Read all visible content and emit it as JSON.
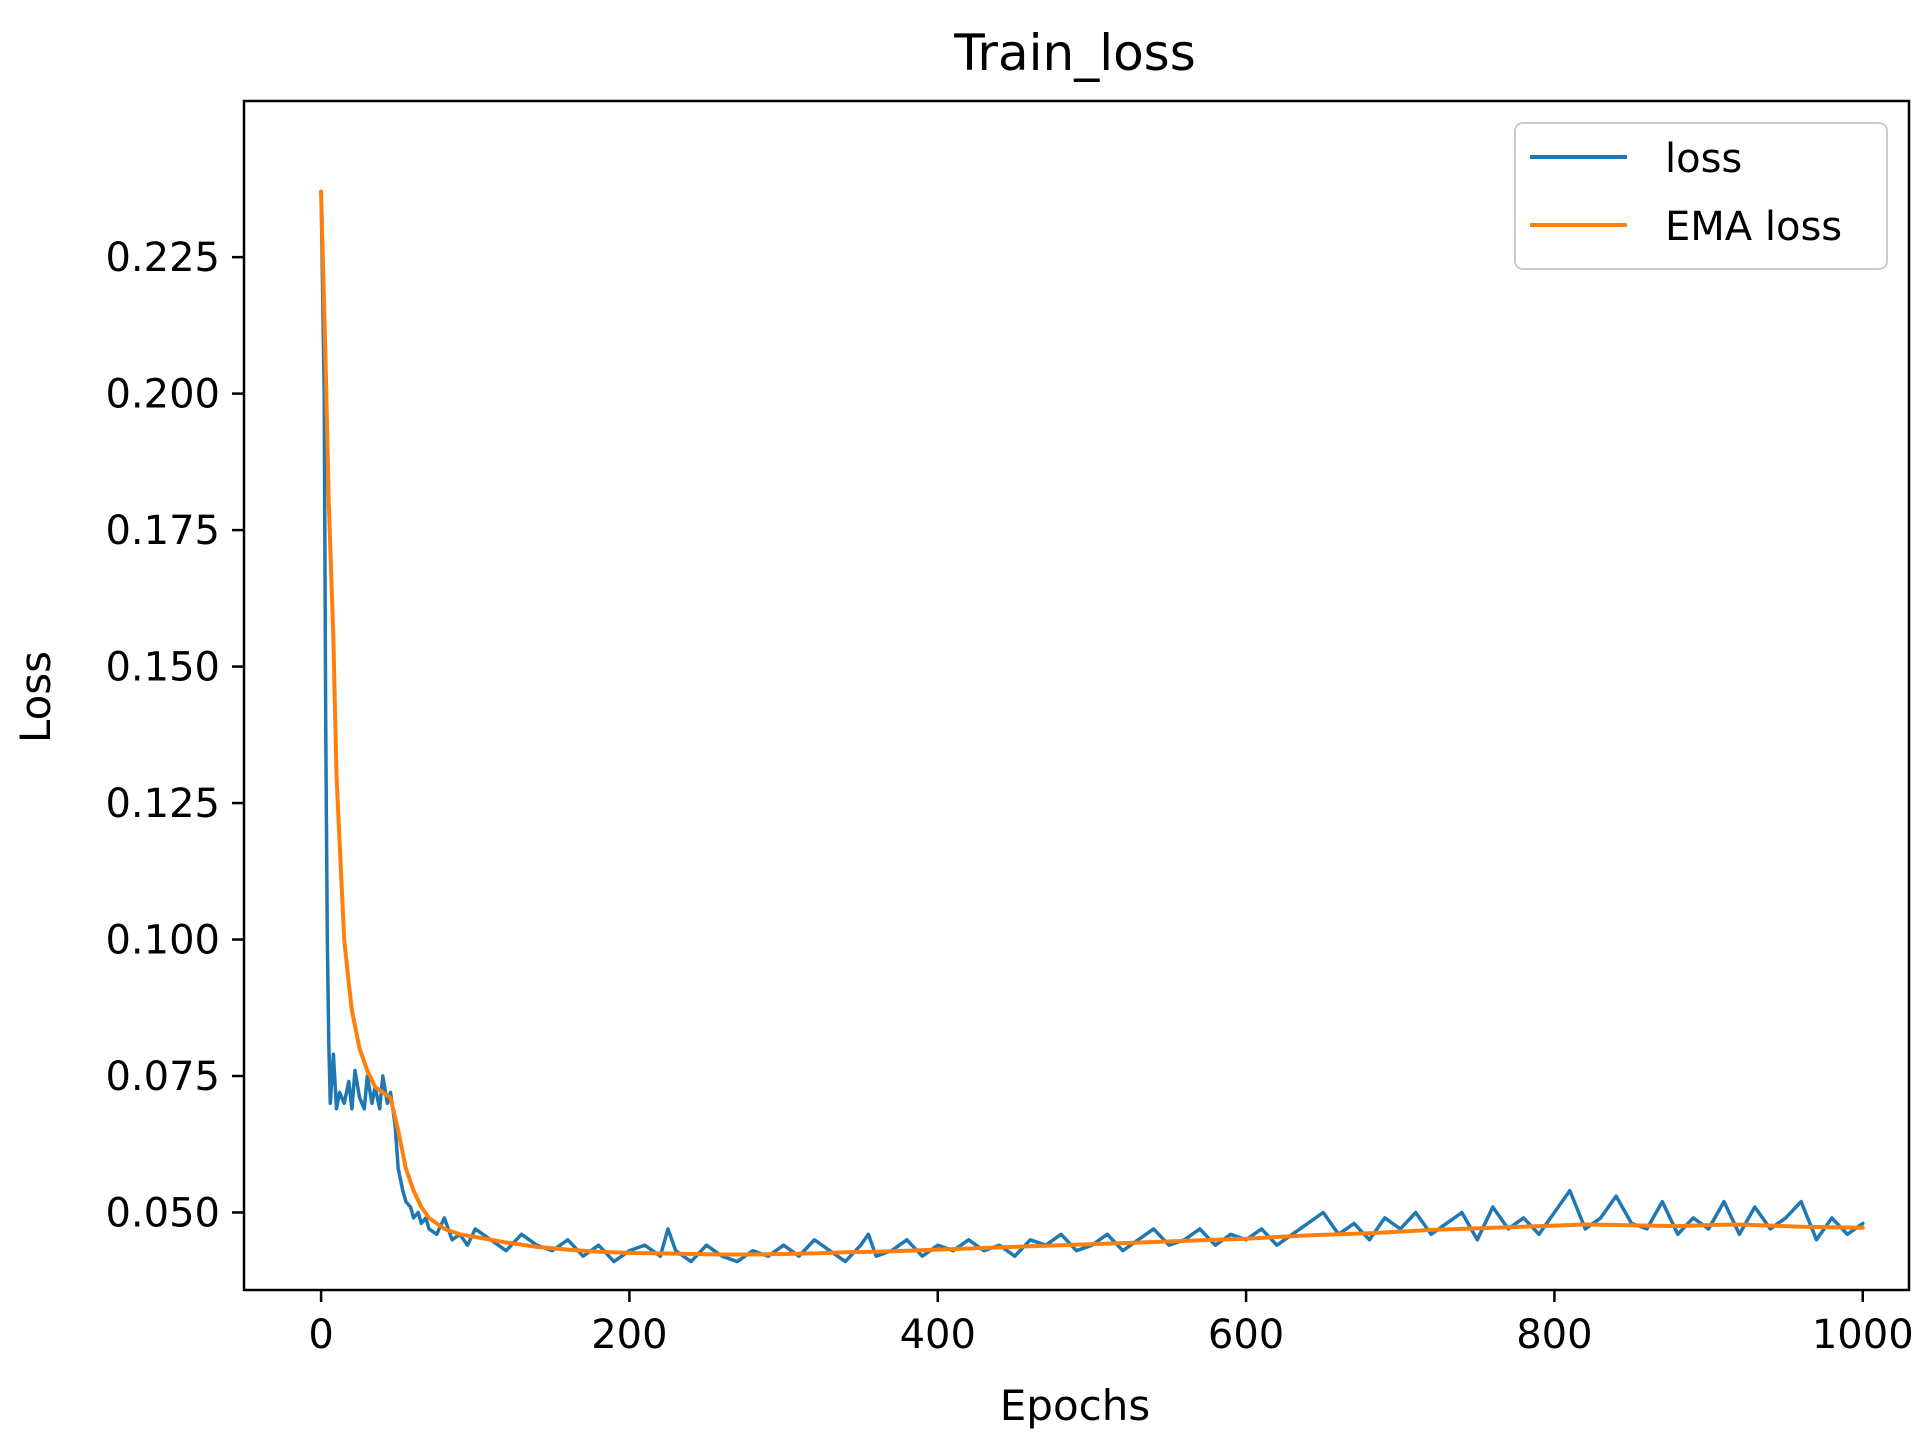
{
  "chart_data": {
    "type": "line",
    "title": "Train_loss",
    "xlabel": "Epochs",
    "ylabel": "Loss",
    "xlim": [
      -50,
      1030
    ],
    "ylim": [
      0.0358,
      0.2536
    ],
    "xticks": [
      0,
      200,
      400,
      600,
      800,
      1000
    ],
    "xtick_labels": [
      "0",
      "200",
      "400",
      "600",
      "800",
      "1000"
    ],
    "yticks": [
      0.05,
      0.075,
      0.1,
      0.125,
      0.15,
      0.175,
      0.2,
      0.225
    ],
    "ytick_labels": [
      "0.050",
      "0.075",
      "0.100",
      "0.125",
      "0.150",
      "0.175",
      "0.200",
      "0.225"
    ],
    "grid": false,
    "legend_position": "top-right",
    "series": [
      {
        "name": "loss",
        "color": "#1f77b4",
        "x": [
          0,
          2,
          3,
          4,
          5,
          6,
          8,
          10,
          12,
          15,
          18,
          20,
          22,
          25,
          28,
          30,
          33,
          35,
          38,
          40,
          43,
          45,
          48,
          50,
          53,
          55,
          58,
          60,
          63,
          65,
          68,
          70,
          75,
          80,
          85,
          90,
          95,
          100,
          110,
          120,
          130,
          140,
          150,
          160,
          170,
          180,
          190,
          200,
          210,
          220,
          225,
          230,
          240,
          250,
          260,
          270,
          280,
          290,
          300,
          310,
          320,
          330,
          340,
          350,
          355,
          360,
          370,
          380,
          390,
          400,
          410,
          420,
          430,
          440,
          450,
          460,
          470,
          480,
          490,
          500,
          510,
          520,
          530,
          540,
          550,
          560,
          570,
          580,
          590,
          600,
          610,
          620,
          630,
          640,
          650,
          660,
          670,
          680,
          690,
          700,
          710,
          720,
          730,
          740,
          750,
          760,
          770,
          780,
          790,
          800,
          810,
          820,
          830,
          840,
          850,
          860,
          870,
          880,
          890,
          900,
          910,
          920,
          930,
          940,
          950,
          960,
          970,
          980,
          990,
          1000
        ],
        "y": [
          0.237,
          0.2,
          0.14,
          0.1,
          0.081,
          0.07,
          0.079,
          0.069,
          0.072,
          0.07,
          0.074,
          0.069,
          0.076,
          0.071,
          0.069,
          0.075,
          0.07,
          0.073,
          0.069,
          0.075,
          0.07,
          0.072,
          0.066,
          0.058,
          0.054,
          0.052,
          0.051,
          0.049,
          0.05,
          0.048,
          0.049,
          0.047,
          0.046,
          0.049,
          0.045,
          0.046,
          0.044,
          0.047,
          0.045,
          0.043,
          0.046,
          0.044,
          0.043,
          0.045,
          0.042,
          0.044,
          0.041,
          0.043,
          0.044,
          0.042,
          0.047,
          0.043,
          0.041,
          0.044,
          0.042,
          0.041,
          0.043,
          0.042,
          0.044,
          0.042,
          0.045,
          0.043,
          0.041,
          0.044,
          0.046,
          0.042,
          0.043,
          0.045,
          0.042,
          0.044,
          0.043,
          0.045,
          0.043,
          0.044,
          0.042,
          0.045,
          0.044,
          0.046,
          0.043,
          0.044,
          0.046,
          0.043,
          0.045,
          0.047,
          0.044,
          0.045,
          0.047,
          0.044,
          0.046,
          0.045,
          0.047,
          0.044,
          0.046,
          0.048,
          0.05,
          0.046,
          0.048,
          0.045,
          0.049,
          0.047,
          0.05,
          0.046,
          0.048,
          0.05,
          0.045,
          0.051,
          0.047,
          0.049,
          0.046,
          0.05,
          0.054,
          0.047,
          0.049,
          0.053,
          0.048,
          0.047,
          0.052,
          0.046,
          0.049,
          0.047,
          0.052,
          0.046,
          0.051,
          0.047,
          0.049,
          0.052,
          0.045,
          0.049,
          0.046,
          0.048
        ]
      },
      {
        "name": "EMA loss",
        "color": "#ff7f0e",
        "x": [
          0,
          3,
          5,
          8,
          10,
          13,
          15,
          18,
          20,
          25,
          30,
          35,
          40,
          45,
          50,
          55,
          60,
          65,
          70,
          75,
          80,
          90,
          100,
          120,
          140,
          160,
          180,
          200,
          220,
          240,
          260,
          280,
          300,
          320,
          340,
          360,
          380,
          400,
          420,
          440,
          460,
          480,
          500,
          520,
          540,
          560,
          580,
          600,
          620,
          640,
          660,
          680,
          700,
          720,
          740,
          760,
          780,
          800,
          820,
          840,
          860,
          880,
          900,
          920,
          940,
          960,
          980,
          1000
        ],
        "y": [
          0.237,
          0.205,
          0.18,
          0.155,
          0.13,
          0.112,
          0.1,
          0.092,
          0.087,
          0.08,
          0.076,
          0.073,
          0.072,
          0.071,
          0.065,
          0.058,
          0.054,
          0.051,
          0.049,
          0.048,
          0.047,
          0.046,
          0.0455,
          0.0445,
          0.0437,
          0.0432,
          0.0428,
          0.0426,
          0.0425,
          0.0424,
          0.0423,
          0.0423,
          0.0424,
          0.0425,
          0.0427,
          0.0428,
          0.043,
          0.0432,
          0.0434,
          0.0436,
          0.0438,
          0.044,
          0.0442,
          0.0444,
          0.0446,
          0.0448,
          0.045,
          0.0452,
          0.0455,
          0.0458,
          0.046,
          0.0462,
          0.0465,
          0.0468,
          0.047,
          0.0472,
          0.0474,
          0.0476,
          0.0478,
          0.0477,
          0.0476,
          0.0475,
          0.0477,
          0.0478,
          0.0476,
          0.0474,
          0.0473,
          0.0472
        ]
      }
    ]
  }
}
